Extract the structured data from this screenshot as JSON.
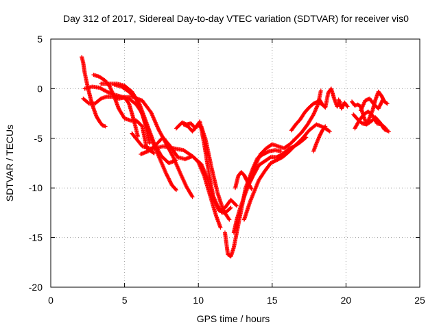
{
  "chart_data": {
    "type": "scatter",
    "title": "Day 312 of 2017, Sidereal Day-to-day VTEC variation (SDTVAR) for receiver vis0",
    "xlabel": "GPS time / hours",
    "ylabel": "SDTVAR / TECUs",
    "xlim": [
      0,
      25
    ],
    "ylim": [
      -20,
      5
    ],
    "xticks": [
      0,
      5,
      10,
      15,
      20,
      25
    ],
    "yticks": [
      5,
      0,
      -5,
      -10,
      -15,
      -20
    ],
    "grid": true,
    "marker": "+",
    "color": "#ff0000",
    "series": [
      {
        "x": [
          2.1,
          2.2,
          2.3,
          2.5,
          2.7,
          2.9,
          3.1,
          3.3,
          3.5,
          3.7
        ],
        "y": [
          3.2,
          2.6,
          1.6,
          0.2,
          -1.0,
          -2.0,
          -2.8,
          -3.3,
          -3.7,
          -3.8
        ]
      },
      {
        "x": [
          2.2,
          2.6,
          3.0,
          3.4,
          3.8,
          4.2,
          4.6,
          5.0,
          5.3,
          5.6,
          5.9
        ],
        "y": [
          -1.0,
          -1.5,
          -1.5,
          -1.0,
          -0.8,
          -0.8,
          -1.0,
          -0.9,
          -1.5,
          -3.0,
          -4.8
        ]
      },
      {
        "x": [
          2.3,
          2.8,
          3.3,
          3.8,
          4.3,
          4.8,
          5.3,
          5.8,
          6.2,
          6.5,
          6.7
        ],
        "y": [
          0.0,
          0.2,
          0.1,
          -0.3,
          -0.6,
          -0.8,
          -1.0,
          -1.6,
          -2.5,
          -4.2,
          -5.5
        ]
      },
      {
        "x": [
          2.9,
          3.3,
          3.7,
          4.0,
          4.3,
          4.6,
          5.0,
          5.4,
          5.8,
          6.2,
          6.5,
          7.0
        ],
        "y": [
          1.4,
          1.2,
          0.8,
          0.2,
          -0.8,
          -2.0,
          -3.0,
          -3.2,
          -3.2,
          -3.8,
          -6.0,
          -6.5
        ]
      },
      {
        "x": [
          3.4,
          4.0,
          4.5,
          5.0,
          5.5,
          6.0,
          6.5,
          7.0,
          7.5,
          8.0,
          8.5
        ],
        "y": [
          0.5,
          0.5,
          0.5,
          0.3,
          -0.3,
          -1.5,
          -3.5,
          -5.5,
          -6.8,
          -7.5,
          -7.2
        ]
      },
      {
        "x": [
          4.3,
          4.8,
          5.3,
          5.8,
          6.2,
          6.7,
          7.2,
          7.8,
          8.2,
          8.5
        ],
        "y": [
          0.4,
          0.2,
          -0.3,
          -1.1,
          -2.6,
          -4.6,
          -6.4,
          -8.5,
          -9.7,
          -10.2
        ]
      },
      {
        "x": [
          4.8,
          5.5,
          6.2,
          6.8,
          7.3,
          7.8,
          8.3,
          8.8,
          9.2,
          9.6
        ],
        "y": [
          -0.9,
          -0.8,
          -1.2,
          -2.4,
          -4.1,
          -5.5,
          -6.9,
          -8.6,
          -9.9,
          -10.9
        ]
      },
      {
        "x": [
          5.5,
          6.2,
          6.9,
          7.6,
          8.3,
          9.0,
          9.6,
          10.2,
          10.6,
          11.0,
          11.4,
          11.8,
          12.2,
          12.6
        ],
        "y": [
          -4.5,
          -5.8,
          -6.1,
          -5.8,
          -6.0,
          -6.2,
          -6.8,
          -7.6,
          -9.0,
          -11.0,
          -12.3,
          -12.0,
          -11.2,
          -11.8
        ]
      },
      {
        "x": [
          6.1,
          6.6,
          7.1,
          7.6,
          8.1,
          8.6,
          9.1,
          9.6,
          10.0,
          10.4,
          10.8,
          11.2,
          11.5
        ],
        "y": [
          -6.6,
          -6.3,
          -5.7,
          -4.9,
          -5.8,
          -6.9,
          -7.1,
          -6.8,
          -7.4,
          -8.8,
          -10.8,
          -12.8,
          -14.0
        ]
      },
      {
        "x": [
          8.5,
          8.9,
          9.2,
          9.5,
          9.8,
          10.1,
          10.4,
          10.7,
          11.0,
          11.3,
          11.6,
          11.9,
          12.2
        ],
        "y": [
          -4.0,
          -3.4,
          -3.6,
          -3.5,
          -4.0,
          -3.3,
          -5.6,
          -8.4,
          -10.8,
          -11.8,
          -12.5,
          -12.4,
          -12.0
        ]
      },
      {
        "x": [
          9.0,
          9.3,
          9.6,
          9.9,
          10.2,
          10.5,
          10.9,
          11.3,
          11.7,
          12.1
        ],
        "y": [
          -3.6,
          -3.8,
          -4.3,
          -3.7,
          -3.8,
          -5.2,
          -8.0,
          -10.5,
          -12.3,
          -13.2
        ]
      },
      {
        "x": [
          11.8,
          12.0,
          12.2,
          12.4,
          12.6,
          12.8,
          13.0,
          13.2,
          13.4,
          13.7,
          14.0,
          14.4,
          14.8,
          15.2,
          15.6
        ],
        "y": [
          -14.5,
          -16.7,
          -16.9,
          -16.0,
          -14.5,
          -13.0,
          -11.5,
          -10.0,
          -9.2,
          -8.0,
          -7.0,
          -6.6,
          -6.3,
          -6.2,
          -6.3
        ]
      },
      {
        "x": [
          12.4,
          12.6,
          12.8,
          13.1,
          13.4,
          13.7,
          14.1,
          14.5,
          14.9,
          15.3,
          15.7,
          16.1,
          16.5,
          16.9,
          17.3
        ],
        "y": [
          -14.5,
          -13.2,
          -12.2,
          -10.9,
          -9.7,
          -8.8,
          -7.7,
          -7.3,
          -6.9,
          -6.9,
          -6.6,
          -6.1,
          -5.8,
          -5.4,
          -4.9
        ]
      },
      {
        "x": [
          12.5,
          12.7,
          12.9,
          13.1,
          13.3,
          13.6
        ],
        "y": [
          -10.0,
          -8.8,
          -8.4,
          -8.7,
          -9.3,
          -10.1
        ]
      },
      {
        "x": [
          13.1,
          13.3,
          13.5,
          13.8,
          14.1,
          14.5,
          14.9,
          15.3,
          15.7,
          16.1,
          16.5,
          17.0,
          17.5,
          18.0,
          18.5,
          18.9
        ],
        "y": [
          -13.2,
          -12.3,
          -11.4,
          -10.3,
          -9.2,
          -8.3,
          -7.5,
          -7.2,
          -6.9,
          -6.4,
          -5.8,
          -5.1,
          -4.2,
          -3.6,
          -3.9,
          -4.3
        ]
      },
      {
        "x": [
          13.6,
          13.9,
          14.2,
          14.6,
          15.0,
          15.4,
          15.8,
          16.2,
          16.6,
          17.0,
          17.4,
          17.8,
          18.1,
          18.3
        ],
        "y": [
          -9.0,
          -7.6,
          -6.6,
          -6.0,
          -5.6,
          -5.8,
          -6.0,
          -5.6,
          -5.0,
          -4.4,
          -3.6,
          -2.6,
          -1.6,
          -0.2
        ]
      },
      {
        "x": [
          16.3,
          16.6,
          16.9,
          17.2,
          17.5,
          17.8,
          18.1,
          18.4
        ],
        "y": [
          -4.2,
          -3.6,
          -3.1,
          -2.4,
          -1.9,
          -1.5,
          -1.3,
          -1.6
        ]
      },
      {
        "x": [
          17.8,
          18.0,
          18.2,
          18.4,
          18.6
        ],
        "y": [
          -6.3,
          -5.5,
          -4.8,
          -4.2,
          -3.8
        ]
      },
      {
        "x": [
          18.2,
          18.4,
          18.6,
          18.8,
          19.0,
          19.2,
          19.4,
          19.6
        ],
        "y": [
          -1.1,
          -1.6,
          -1.9,
          -0.4,
          0.0,
          -1.0,
          -1.8,
          -1.3
        ]
      },
      {
        "x": [
          19.5,
          19.7,
          19.9,
          20.1
        ],
        "y": [
          -1.1,
          -2.0,
          -1.4,
          -1.8
        ]
      },
      {
        "x": [
          20.4,
          20.6,
          20.8,
          21.0,
          21.2,
          21.4,
          21.6,
          21.8,
          22.0,
          22.2,
          22.4,
          22.6,
          22.8
        ],
        "y": [
          -1.3,
          -1.7,
          -1.6,
          -1.8,
          -2.8,
          -3.6,
          -2.9,
          -2.2,
          -1.1,
          -0.3,
          -0.7,
          -1.3,
          -1.5
        ]
      },
      {
        "x": [
          20.5,
          20.8,
          21.1,
          21.4,
          21.7,
          22.0,
          22.3,
          22.6,
          22.9
        ],
        "y": [
          -2.6,
          -3.1,
          -3.5,
          -3.6,
          -3.3,
          -2.9,
          -3.4,
          -4.1,
          -4.3
        ]
      },
      {
        "x": [
          20.6,
          20.9,
          21.2,
          21.5,
          21.8,
          22.1,
          22.4,
          22.7
        ],
        "y": [
          -4.0,
          -3.2,
          -2.6,
          -2.3,
          -2.7,
          -3.5,
          -3.6,
          -4.0
        ]
      },
      {
        "x": [
          21.0,
          21.3,
          21.6,
          21.9,
          22.2,
          22.5
        ],
        "y": [
          -2.2,
          -1.2,
          -1.0,
          -1.6,
          -2.0,
          -1.1
        ]
      }
    ]
  }
}
